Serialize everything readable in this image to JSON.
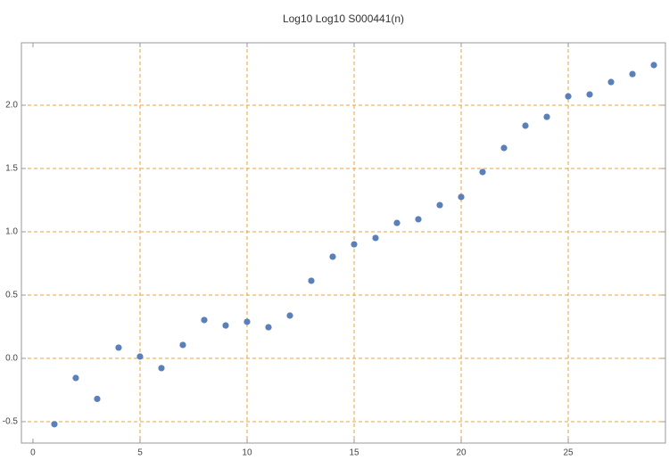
{
  "chart_data": {
    "type": "scatter",
    "title": "Log10 Log10 S000441(n)",
    "x": [
      1,
      2,
      3,
      4,
      5,
      6,
      7,
      8,
      9,
      10,
      11,
      12,
      13,
      14,
      15,
      16,
      17,
      18,
      19,
      20,
      21,
      22,
      23,
      24,
      25,
      26,
      27,
      28,
      29
    ],
    "series": [
      {
        "color": "#5b7fb8",
        "values": [
          -0.52,
          -0.155,
          -0.32,
          0.085,
          0.014,
          -0.077,
          0.106,
          0.303,
          0.26,
          0.289,
          0.246,
          0.338,
          0.613,
          0.803,
          0.901,
          0.951,
          1.07,
          1.099,
          1.211,
          1.275,
          1.472,
          1.662,
          1.838,
          1.908,
          2.07,
          2.085,
          2.183,
          2.246,
          2.317
        ]
      }
    ],
    "xlim": [
      -0.54,
      29.54
    ],
    "ylim": [
      -0.669,
      2.493
    ],
    "xticks": [
      0,
      5,
      10,
      15,
      20,
      25
    ],
    "yticks": [
      -0.5,
      {
        "value": 0,
        "label": "0.0"
      },
      0.5,
      {
        "value": 1,
        "label": "1.0"
      },
      1.5,
      {
        "value": 2,
        "label": "2.0"
      }
    ],
    "xgrid": [
      5,
      10,
      15,
      20,
      25
    ],
    "grid_color": "#e8a33d"
  }
}
